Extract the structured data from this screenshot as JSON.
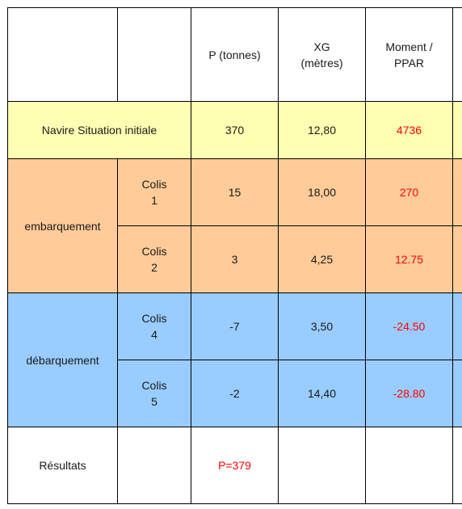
{
  "header": {
    "p": "P (tonnes)",
    "xg_line1": "XG",
    "xg_line2": "(mètres)",
    "moment_line1": "Moment /",
    "moment_line2": "PPAR"
  },
  "initial": {
    "label": "Navire Situation initiale",
    "p": "370",
    "xg": "12,80",
    "moment": "4736"
  },
  "embarquement": {
    "label": "embarquement",
    "rows": [
      {
        "colis": "Colis",
        "num": "1",
        "p": "15",
        "xg": "18,00",
        "moment": "270"
      },
      {
        "colis": "Colis",
        "num": "2",
        "p": "3",
        "xg": "4,25",
        "moment": "12.75"
      }
    ]
  },
  "debarquement": {
    "label": "débarquement",
    "rows": [
      {
        "colis": "Colis",
        "num": "4",
        "p": "-7",
        "xg": "3,50",
        "moment": "-24.50"
      },
      {
        "colis": "Colis",
        "num": "5",
        "p": "-2",
        "xg": "14,40",
        "moment": "-28.80"
      }
    ]
  },
  "results": {
    "label": "Résultats",
    "p": "P=379"
  },
  "colors": {
    "initial_row": "#ffffb3",
    "embarquement_rows": "#ffcc99",
    "debarquement_rows": "#99ccff",
    "moment_text": "#ff0000"
  }
}
